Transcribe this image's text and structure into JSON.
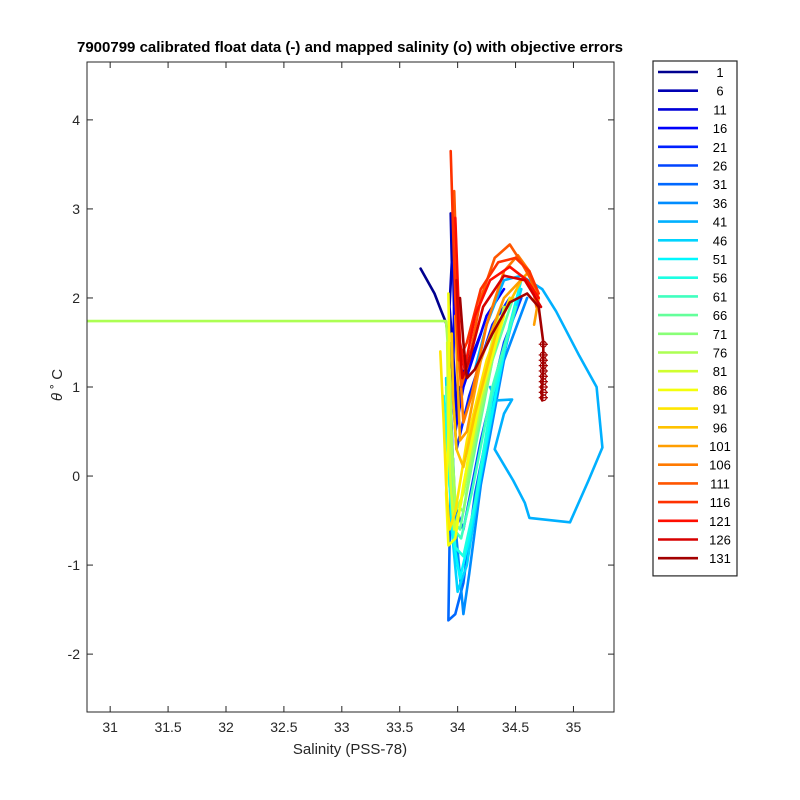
{
  "chart_data": {
    "type": "line",
    "title": "7900799 calibrated float data (-) and mapped salinity (o) with objective errors",
    "xlabel": "Salinity (PSS-78)",
    "ylabel_symbol": "θ",
    "ylabel_unit": "˚ C",
    "xlim": [
      30.8,
      35.35
    ],
    "ylim": [
      -2.65,
      4.65
    ],
    "xticks": [
      31,
      31.5,
      32,
      32.5,
      33,
      33.5,
      34,
      34.5,
      35
    ],
    "xtick_labels": [
      "31",
      "31.5",
      "32",
      "32.5",
      "33",
      "33.5",
      "34",
      "34.5",
      "35"
    ],
    "yticks": [
      -2,
      -1,
      0,
      1,
      2,
      3,
      4
    ],
    "ytick_labels": [
      "-2",
      "-1",
      "0",
      "1",
      "2",
      "3",
      "4"
    ],
    "legend_position": "outside-right",
    "grid": false,
    "series": [
      {
        "name": "1",
        "color": "#00008f",
        "points": [
          [
            33.68,
            2.33
          ],
          [
            33.8,
            2.05
          ],
          [
            33.86,
            1.85
          ],
          [
            33.9,
            1.72
          ],
          [
            33.93,
            1.45
          ],
          [
            33.96,
            1.0
          ],
          [
            33.99,
            0.9
          ],
          [
            34.02,
            1.0
          ]
        ]
      },
      {
        "name": "6",
        "color": "#0000b3",
        "points": [
          [
            33.94,
            2.95
          ],
          [
            33.95,
            2.4
          ],
          [
            33.93,
            1.9
          ],
          [
            33.96,
            1.4
          ],
          [
            33.98,
            1.0
          ],
          [
            34.0,
            0.6
          ],
          [
            34.04,
            1.1
          ],
          [
            34.1,
            1.4
          ]
        ]
      },
      {
        "name": "11",
        "color": "#0000d7",
        "points": [
          [
            33.96,
            2.4
          ],
          [
            33.97,
            1.8
          ],
          [
            33.96,
            1.2
          ],
          [
            34.0,
            0.7
          ],
          [
            34.08,
            1.2
          ],
          [
            34.2,
            1.6
          ]
        ]
      },
      {
        "name": "16",
        "color": "#0000fb",
        "points": [
          [
            33.97,
            1.9
          ],
          [
            33.96,
            1.2
          ],
          [
            33.98,
            0.5
          ],
          [
            34.05,
            1.0
          ],
          [
            34.25,
            1.8
          ],
          [
            34.4,
            2.1
          ]
        ]
      },
      {
        "name": "21",
        "color": "#0020ff",
        "points": [
          [
            33.95,
            1.5
          ],
          [
            33.96,
            0.9
          ],
          [
            33.99,
            0.3
          ],
          [
            34.1,
            0.9
          ],
          [
            34.3,
            1.7
          ],
          [
            34.45,
            2.0
          ]
        ]
      },
      {
        "name": "26",
        "color": "#0044ff",
        "points": [
          [
            33.93,
            1.2
          ],
          [
            33.95,
            0.5
          ],
          [
            33.97,
            -0.3
          ],
          [
            34.05,
            -0.6
          ],
          [
            34.2,
            0.4
          ],
          [
            34.4,
            1.5
          ],
          [
            34.55,
            2.0
          ]
        ]
      },
      {
        "name": "31",
        "color": "#0068ff",
        "points": [
          [
            33.95,
            0.5
          ],
          [
            33.93,
            -0.8
          ],
          [
            33.92,
            -1.62
          ],
          [
            33.98,
            -1.55
          ],
          [
            34.05,
            -1.2
          ],
          [
            34.15,
            -0.2
          ],
          [
            34.35,
            1.1
          ],
          [
            34.5,
            1.9
          ]
        ]
      },
      {
        "name": "36",
        "color": "#008cff",
        "points": [
          [
            33.96,
            0.2
          ],
          [
            33.99,
            -0.7
          ],
          [
            34.05,
            -1.55
          ],
          [
            34.1,
            -1.1
          ],
          [
            34.2,
            -0.1
          ],
          [
            34.4,
            1.3
          ],
          [
            34.6,
            2.0
          ]
        ]
      },
      {
        "name": "41",
        "color": "#00b0ff",
        "points": [
          [
            34.28,
            1.0
          ],
          [
            34.33,
            0.85
          ],
          [
            34.47,
            0.86
          ],
          [
            34.4,
            0.7
          ],
          [
            34.32,
            0.3
          ],
          [
            34.48,
            -0.05
          ],
          [
            34.58,
            -0.3
          ],
          [
            34.62,
            -0.47
          ],
          [
            34.97,
            -0.52
          ],
          [
            35.13,
            -0.05
          ],
          [
            35.25,
            0.32
          ],
          [
            35.2,
            1.0
          ],
          [
            35.05,
            1.35
          ],
          [
            34.85,
            1.85
          ],
          [
            34.73,
            2.1
          ],
          [
            34.55,
            2.25
          ],
          [
            34.4,
            2.2
          ],
          [
            34.25,
            1.7
          ],
          [
            34.15,
            1.2
          ]
        ]
      },
      {
        "name": "46",
        "color": "#00d4ff",
        "points": [
          [
            33.9,
            1.1
          ],
          [
            33.92,
            0.3
          ],
          [
            33.95,
            -0.6
          ],
          [
            34.0,
            -1.3
          ],
          [
            34.08,
            -1.0
          ],
          [
            34.2,
            0.0
          ],
          [
            34.4,
            1.4
          ],
          [
            34.55,
            2.1
          ]
        ]
      },
      {
        "name": "51",
        "color": "#00f8ff",
        "points": [
          [
            33.88,
            0.9
          ],
          [
            33.92,
            0.1
          ],
          [
            33.96,
            -0.7
          ],
          [
            34.02,
            -1.15
          ],
          [
            34.1,
            -0.7
          ],
          [
            34.25,
            0.4
          ],
          [
            34.45,
            1.7
          ],
          [
            34.55,
            2.2
          ]
        ]
      },
      {
        "name": "56",
        "color": "#1cffe3",
        "points": [
          [
            33.9,
            0.7
          ],
          [
            33.93,
            -0.1
          ],
          [
            33.98,
            -0.8
          ],
          [
            34.05,
            -0.9
          ],
          [
            34.15,
            -0.3
          ],
          [
            34.3,
            0.9
          ],
          [
            34.5,
            1.9
          ]
        ]
      },
      {
        "name": "61",
        "color": "#40ffbf",
        "points": [
          [
            33.92,
            0.9
          ],
          [
            33.94,
            0.1
          ],
          [
            33.97,
            -0.6
          ],
          [
            34.03,
            -0.7
          ],
          [
            34.12,
            -0.2
          ],
          [
            34.3,
            1.0
          ],
          [
            34.5,
            1.9
          ]
        ]
      },
      {
        "name": "66",
        "color": "#64ff9b",
        "points": [
          [
            33.9,
            1.0
          ],
          [
            33.93,
            0.2
          ],
          [
            33.96,
            -0.5
          ],
          [
            34.02,
            -0.6
          ],
          [
            34.12,
            0.1
          ],
          [
            34.3,
            1.3
          ],
          [
            34.48,
            2.0
          ]
        ]
      },
      {
        "name": "71",
        "color": "#88ff77",
        "points": [
          [
            33.93,
            1.2
          ],
          [
            33.95,
            0.4
          ],
          [
            33.98,
            -0.3
          ],
          [
            34.05,
            -0.4
          ],
          [
            34.15,
            0.4
          ],
          [
            34.35,
            1.6
          ]
        ]
      },
      {
        "name": "76",
        "color": "#acff53",
        "points": [
          [
            30.8,
            1.74
          ],
          [
            33.9,
            1.74
          ],
          [
            33.93,
            1.2
          ],
          [
            33.95,
            0.3
          ],
          [
            33.98,
            -0.4
          ],
          [
            34.05,
            -0.2
          ],
          [
            34.2,
            0.8
          ],
          [
            34.4,
            1.9
          ]
        ]
      },
      {
        "name": "81",
        "color": "#d0ff2f",
        "points": [
          [
            33.91,
            1.5
          ],
          [
            33.92,
            0.6
          ],
          [
            33.94,
            -0.1
          ],
          [
            33.97,
            -0.6
          ],
          [
            34.03,
            -0.3
          ],
          [
            34.15,
            0.7
          ],
          [
            34.35,
            1.8
          ]
        ]
      },
      {
        "name": "86",
        "color": "#f4ff0b",
        "points": [
          [
            33.92,
            2.05
          ],
          [
            33.93,
            1.3
          ],
          [
            33.92,
            0.5
          ],
          [
            33.9,
            -0.2
          ],
          [
            33.92,
            -0.78
          ],
          [
            33.98,
            -0.7
          ],
          [
            34.05,
            -0.1
          ],
          [
            34.2,
            0.9
          ],
          [
            34.4,
            1.8
          ]
        ]
      },
      {
        "name": "91",
        "color": "#ffe600",
        "points": [
          [
            33.85,
            1.4
          ],
          [
            33.88,
            0.6
          ],
          [
            33.9,
            -0.1
          ],
          [
            33.93,
            -0.6
          ],
          [
            33.98,
            -0.4
          ],
          [
            34.08,
            0.4
          ],
          [
            34.25,
            1.3
          ],
          [
            34.45,
            2.0
          ]
        ]
      },
      {
        "name": "96",
        "color": "#ffc200",
        "points": [
          [
            33.95,
            1.6
          ],
          [
            33.96,
            0.9
          ],
          [
            33.99,
            0.3
          ],
          [
            34.05,
            0.1
          ],
          [
            34.15,
            0.7
          ],
          [
            34.35,
            1.7
          ],
          [
            34.55,
            2.2
          ]
        ]
      },
      {
        "name": "101",
        "color": "#ff9e00",
        "points": [
          [
            33.98,
            1.8
          ],
          [
            34.0,
            1.1
          ],
          [
            34.02,
            0.4
          ],
          [
            34.08,
            0.5
          ],
          [
            34.2,
            1.3
          ],
          [
            34.4,
            2.0
          ],
          [
            34.62,
            2.3
          ],
          [
            34.7,
            2.0
          ],
          [
            34.66,
            1.7
          ]
        ]
      },
      {
        "name": "106",
        "color": "#ff7a00",
        "points": [
          [
            34.0,
            2.0
          ],
          [
            34.02,
            1.2
          ],
          [
            34.05,
            0.6
          ],
          [
            34.12,
            0.9
          ],
          [
            34.25,
            1.7
          ],
          [
            34.4,
            2.3
          ],
          [
            34.52,
            2.48
          ],
          [
            34.62,
            2.3
          ],
          [
            34.68,
            1.9
          ]
        ]
      },
      {
        "name": "111",
        "color": "#ff5600",
        "points": [
          [
            33.97,
            3.2
          ],
          [
            33.99,
            2.4
          ],
          [
            34.0,
            1.6
          ],
          [
            34.03,
            1.0
          ],
          [
            34.1,
            1.3
          ],
          [
            34.2,
            2.0
          ],
          [
            34.32,
            2.45
          ],
          [
            34.45,
            2.6
          ],
          [
            34.55,
            2.4
          ],
          [
            34.68,
            2.1
          ]
        ]
      },
      {
        "name": "116",
        "color": "#ff3200",
        "points": [
          [
            33.94,
            3.65
          ],
          [
            33.96,
            2.8
          ],
          [
            33.98,
            2.0
          ],
          [
            34.01,
            1.3
          ],
          [
            34.08,
            1.5
          ],
          [
            34.2,
            2.1
          ],
          [
            34.35,
            2.4
          ],
          [
            34.5,
            2.45
          ],
          [
            34.62,
            2.3
          ],
          [
            34.7,
            2.05
          ]
        ]
      },
      {
        "name": "121",
        "color": "#ff0e00",
        "points": [
          [
            33.98,
            2.9
          ],
          [
            34.0,
            2.2
          ],
          [
            34.02,
            1.5
          ],
          [
            34.06,
            1.2
          ],
          [
            34.15,
            1.8
          ],
          [
            34.28,
            2.2
          ],
          [
            34.45,
            2.35
          ],
          [
            34.6,
            2.2
          ],
          [
            34.7,
            2.0
          ]
        ]
      },
      {
        "name": "126",
        "color": "#d70000",
        "points": [
          [
            33.99,
            2.2
          ],
          [
            34.01,
            1.6
          ],
          [
            34.04,
            1.1
          ],
          [
            34.1,
            1.3
          ],
          [
            34.22,
            1.9
          ],
          [
            34.4,
            2.25
          ],
          [
            34.58,
            2.2
          ],
          [
            34.72,
            1.9
          ]
        ]
      },
      {
        "name": "131",
        "color": "#a30000",
        "points": [
          [
            34.02,
            2.0
          ],
          [
            34.05,
            1.5
          ],
          [
            34.08,
            1.1
          ],
          [
            34.15,
            1.2
          ],
          [
            34.3,
            1.6
          ],
          [
            34.45,
            1.95
          ],
          [
            34.6,
            2.05
          ],
          [
            34.7,
            1.9
          ],
          [
            34.74,
            1.5
          ],
          [
            34.74,
            1.2
          ],
          [
            34.73,
            1.0
          ],
          [
            34.73,
            0.85
          ]
        ]
      }
    ],
    "mapped_points": {
      "series_name": "131",
      "color": "#a30000",
      "points": [
        [
          34.74,
          1.48
        ],
        [
          34.74,
          1.36
        ],
        [
          34.74,
          1.3
        ],
        [
          34.74,
          1.24
        ],
        [
          34.74,
          1.18
        ],
        [
          34.74,
          1.12
        ],
        [
          34.74,
          1.06
        ],
        [
          34.74,
          1.0
        ],
        [
          34.74,
          0.94
        ],
        [
          34.74,
          0.88
        ]
      ],
      "errorbars": [
        [
          34.7,
          34.78
        ],
        [
          34.7,
          34.78
        ],
        [
          34.7,
          34.78
        ],
        [
          34.7,
          34.78
        ],
        [
          34.7,
          34.78
        ],
        [
          34.7,
          34.78
        ],
        [
          34.7,
          34.78
        ],
        [
          34.7,
          34.78
        ],
        [
          34.7,
          34.78
        ],
        [
          34.7,
          34.78
        ]
      ]
    }
  }
}
